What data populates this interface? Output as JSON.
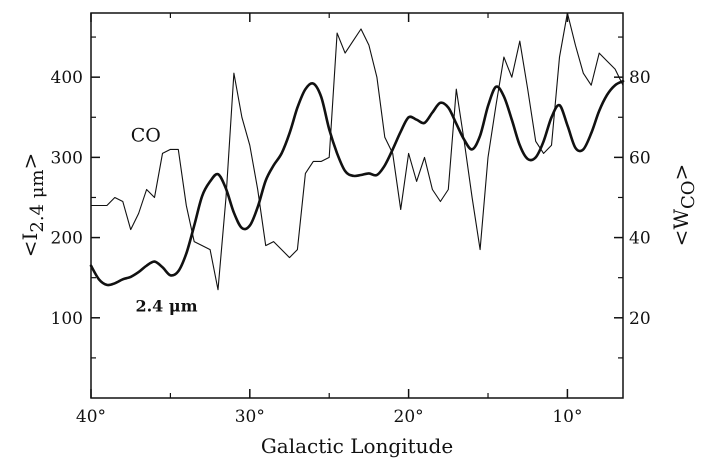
{
  "chart_data": {
    "type": "line",
    "xlabel": "Galactic Longitude",
    "ylabel_left": "<I",
    "ylabel_left_sub": "2.4 μm",
    "ylabel_left_close": ">",
    "ylabel_right": "<W",
    "ylabel_right_sub": "CO",
    "ylabel_right_close": ">",
    "x_reversed": true,
    "xlim": [
      40,
      6.5
    ],
    "ylim_left": [
      0,
      480
    ],
    "ylim_right": [
      0,
      96
    ],
    "grid": false,
    "xticks": [
      {
        "value": 40,
        "label": "40°"
      },
      {
        "value": 30,
        "label": "30°"
      },
      {
        "value": 20,
        "label": "20°"
      },
      {
        "value": 10,
        "label": "10°"
      }
    ],
    "yticks_left": [
      {
        "value": 100,
        "label": "100"
      },
      {
        "value": 200,
        "label": "200"
      },
      {
        "value": 300,
        "label": "300"
      },
      {
        "value": 400,
        "label": "400"
      }
    ],
    "yticks_right": [
      {
        "value": 20,
        "label": "20"
      },
      {
        "value": 40,
        "label": "40"
      },
      {
        "value": 60,
        "label": "60"
      },
      {
        "value": 80,
        "label": "80"
      }
    ],
    "series": [
      {
        "name": "CO",
        "axis": "right",
        "line": "thin",
        "label_pos": {
          "x": 37.5,
          "y": 64
        },
        "x": [
          40,
          39,
          38.5,
          38,
          37.5,
          37,
          36.5,
          36,
          35.5,
          35,
          34.5,
          34,
          33.5,
          33,
          32.5,
          32,
          31.5,
          31,
          30.5,
          30,
          29.5,
          29,
          28.5,
          28,
          27.5,
          27,
          26.5,
          26,
          25.5,
          25,
          24.5,
          24,
          23.5,
          23,
          22.5,
          22,
          21.5,
          21,
          20.5,
          20,
          19.5,
          19,
          18.5,
          18,
          17.5,
          17,
          16.5,
          16,
          15.5,
          15,
          14.5,
          14,
          13.5,
          13,
          12.5,
          12,
          11.5,
          11,
          10.5,
          10,
          9.5,
          9,
          8.5,
          8,
          7.5,
          7,
          6.5
        ],
        "values": [
          48,
          48,
          50,
          49,
          42,
          46,
          52,
          50,
          61,
          62,
          62,
          48,
          39,
          38,
          37,
          27,
          50,
          81,
          70,
          63,
          52,
          38,
          39,
          37,
          35,
          37,
          56,
          59,
          59,
          60,
          91,
          86,
          89,
          92,
          88,
          80,
          65,
          61,
          47,
          61,
          54,
          60,
          52,
          49,
          52,
          77,
          64,
          50,
          37,
          60,
          73,
          85,
          80,
          89,
          77,
          64,
          61,
          63,
          85,
          96,
          88,
          81,
          78,
          86,
          84,
          82,
          78
        ]
      },
      {
        "name": "2.4 μm",
        "axis": "left",
        "line": "thick",
        "label_pos": {
          "x": 37.2,
          "y": 108
        },
        "x": [
          40,
          39.5,
          39,
          38.5,
          38,
          37.5,
          37,
          36.5,
          36,
          35.5,
          35,
          34.5,
          34,
          33.5,
          33,
          32.5,
          32,
          31.5,
          31,
          30.5,
          30,
          29.5,
          29,
          28.5,
          28,
          27.5,
          27,
          26.5,
          26,
          25.5,
          25,
          24.5,
          24,
          23.5,
          23,
          22.5,
          22,
          21.5,
          21,
          20.5,
          20,
          19.5,
          19,
          18.5,
          18,
          17.5,
          17,
          16.5,
          16,
          15.5,
          15,
          14.5,
          14,
          13.5,
          13,
          12.5,
          12,
          11.5,
          11,
          10.5,
          10,
          9.5,
          9,
          8.5,
          8,
          7.5,
          7,
          6.5
        ],
        "values": [
          165,
          148,
          141,
          143,
          148,
          151,
          157,
          165,
          170,
          163,
          153,
          158,
          180,
          215,
          252,
          270,
          279,
          261,
          231,
          212,
          215,
          238,
          271,
          290,
          305,
          330,
          362,
          385,
          392,
          375,
          335,
          305,
          283,
          277,
          278,
          280,
          278,
          290,
          310,
          332,
          350,
          347,
          343,
          356,
          368,
          362,
          342,
          322,
          310,
          327,
          364,
          388,
          376,
          347,
          315,
          298,
          300,
          320,
          350,
          365,
          340,
          312,
          310,
          330,
          358,
          378,
          390,
          395
        ]
      }
    ]
  }
}
